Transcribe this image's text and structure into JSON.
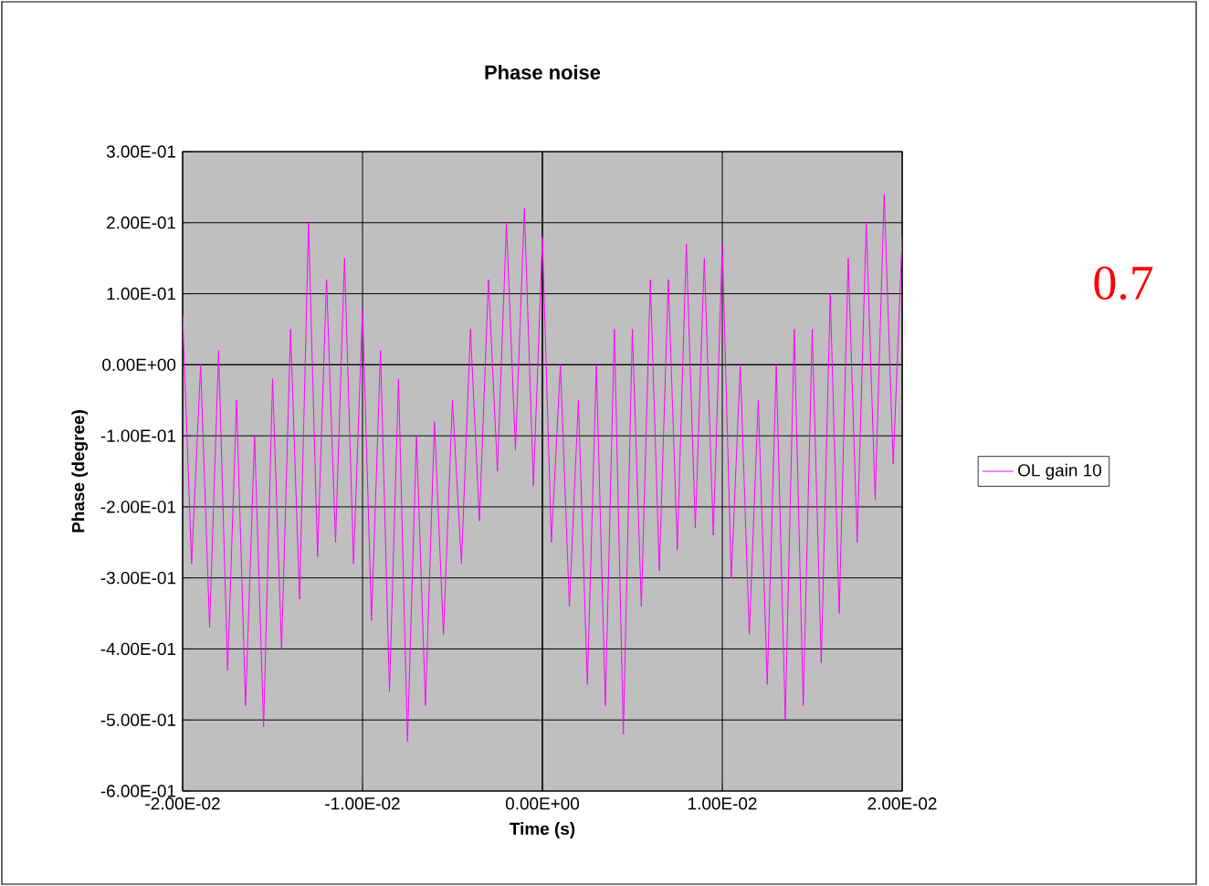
{
  "chart_data": {
    "type": "line",
    "title": "Phase noise",
    "xlabel": "Time (s)",
    "ylabel": "Phase (degree)",
    "annotations": [
      "0.7"
    ],
    "xlim": [
      -0.02,
      0.02
    ],
    "ylim": [
      -0.6,
      0.3
    ],
    "xticks": [
      {
        "value": -0.02,
        "label": "-2.00E-02"
      },
      {
        "value": -0.01,
        "label": "-1.00E-02"
      },
      {
        "value": 0,
        "label": "0.00E+00"
      },
      {
        "value": 0.01,
        "label": "1.00E-02"
      },
      {
        "value": 0.02,
        "label": "2.00E-02"
      }
    ],
    "yticks": [
      {
        "value": 0.3,
        "label": "3.00E-01"
      },
      {
        "value": 0.2,
        "label": "2.00E-01"
      },
      {
        "value": 0.1,
        "label": "1.00E-01"
      },
      {
        "value": 0,
        "label": "0.00E+00"
      },
      {
        "value": -0.1,
        "label": "-1.00E-01"
      },
      {
        "value": -0.2,
        "label": "-2.00E-01"
      },
      {
        "value": -0.3,
        "label": "-3.00E-01"
      },
      {
        "value": -0.4,
        "label": "-4.00E-01"
      },
      {
        "value": -0.5,
        "label": "-5.00E-01"
      },
      {
        "value": -0.6,
        "label": "-6.00E-01"
      }
    ],
    "grid": true,
    "legend": "right",
    "x": [
      -0.02,
      -0.0195,
      -0.019,
      -0.0185,
      -0.018,
      -0.0175,
      -0.017,
      -0.0165,
      -0.016,
      -0.0155,
      -0.015,
      -0.0145,
      -0.014,
      -0.0135,
      -0.013,
      -0.0125,
      -0.012,
      -0.0115,
      -0.011,
      -0.0105,
      -0.01,
      -0.0095,
      -0.009,
      -0.0085,
      -0.008,
      -0.0075,
      -0.007,
      -0.0065,
      -0.006,
      -0.0055,
      -0.005,
      -0.0045,
      -0.004,
      -0.0035,
      -0.003,
      -0.0025,
      -0.002,
      -0.0015,
      -0.001,
      -0.0005,
      0,
      0.0005,
      0.001,
      0.0015,
      0.002,
      0.0025,
      0.003,
      0.0035,
      0.004,
      0.0045,
      0.005,
      0.0055,
      0.006,
      0.0065,
      0.007,
      0.0075,
      0.008,
      0.0085,
      0.009,
      0.0095,
      0.01,
      0.0105,
      0.011,
      0.0115,
      0.012,
      0.0125,
      0.013,
      0.0135,
      0.014,
      0.0145,
      0.015,
      0.0155,
      0.016,
      0.0165,
      0.017,
      0.0175,
      0.018,
      0.0185,
      0.019,
      0.0195,
      0.02
    ],
    "series": [
      {
        "name": "OL gain 10",
        "color": "#ff00ff",
        "values": [
          0.07,
          -0.28,
          0.0,
          -0.37,
          0.02,
          -0.43,
          -0.05,
          -0.48,
          -0.1,
          -0.51,
          -0.02,
          -0.4,
          0.05,
          -0.33,
          0.2,
          -0.27,
          0.12,
          -0.25,
          0.15,
          -0.28,
          0.08,
          -0.36,
          0.02,
          -0.46,
          -0.02,
          -0.53,
          -0.1,
          -0.48,
          -0.08,
          -0.38,
          -0.05,
          -0.28,
          0.05,
          -0.22,
          0.12,
          -0.15,
          0.2,
          -0.12,
          0.22,
          -0.17,
          0.18,
          -0.25,
          0.0,
          -0.34,
          -0.05,
          -0.45,
          0.0,
          -0.48,
          0.05,
          -0.52,
          0.05,
          -0.34,
          0.12,
          -0.29,
          0.12,
          -0.26,
          0.17,
          -0.23,
          0.15,
          -0.24,
          0.17,
          -0.3,
          0.0,
          -0.38,
          -0.05,
          -0.45,
          0.0,
          -0.5,
          0.05,
          -0.48,
          0.05,
          -0.42,
          0.1,
          -0.35,
          0.15,
          -0.25,
          0.2,
          -0.19,
          0.24,
          -0.14,
          0.18
        ]
      }
    ]
  }
}
